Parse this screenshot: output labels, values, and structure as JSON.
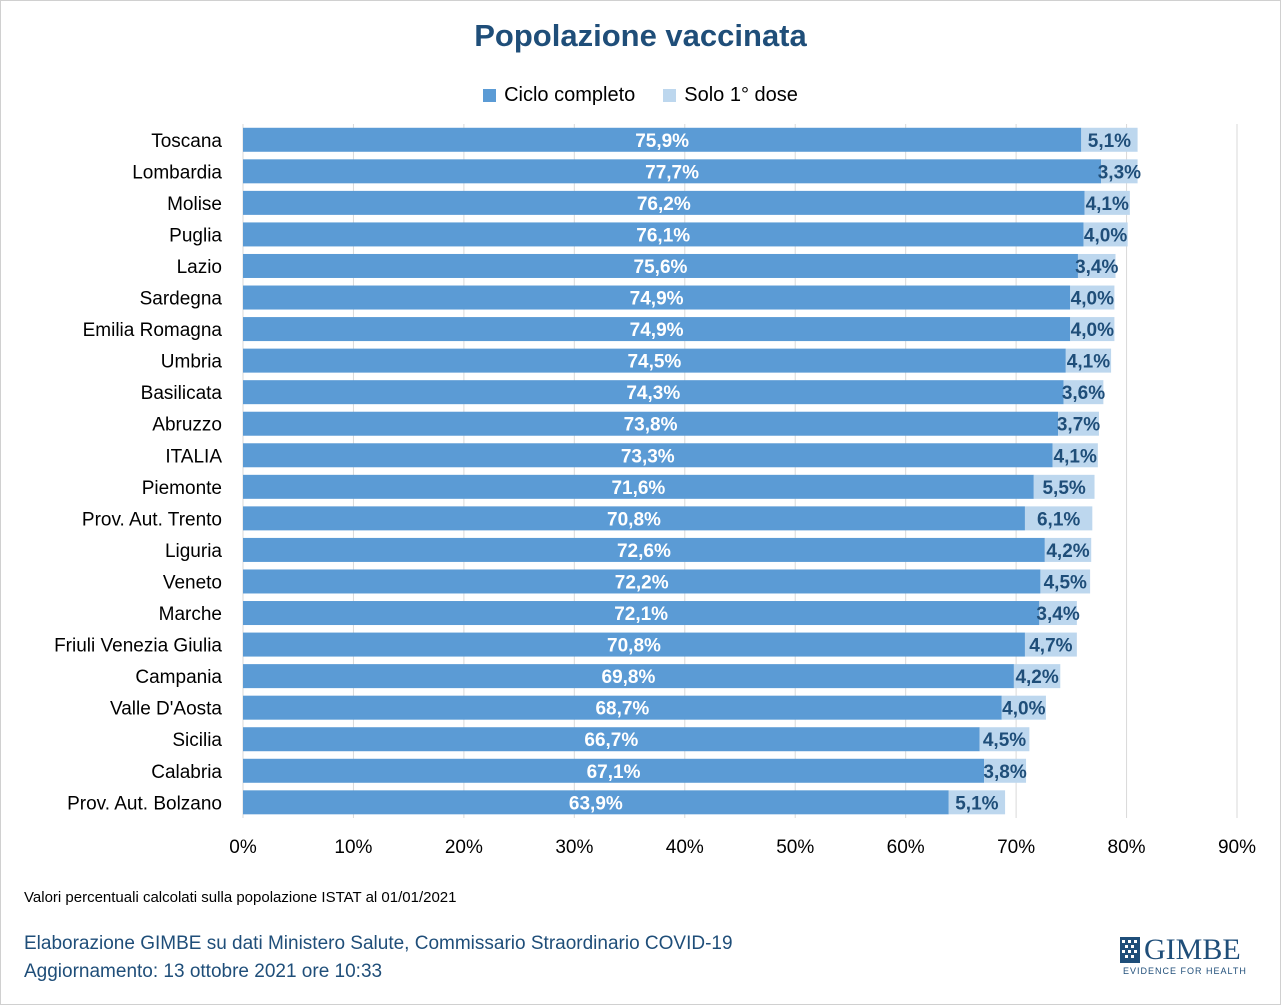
{
  "chart_data": {
    "type": "bar",
    "orientation": "horizontal",
    "stacked": true,
    "title": "Popolazione vaccinata",
    "categories": [
      "Toscana",
      "Lombardia",
      "Molise",
      "Puglia",
      "Lazio",
      "Sardegna",
      "Emilia Romagna",
      "Umbria",
      "Basilicata",
      "Abruzzo",
      "ITALIA",
      "Piemonte",
      "Prov. Aut. Trento",
      "Liguria",
      "Veneto",
      "Marche",
      "Friuli Venezia Giulia",
      "Campania",
      "Valle D'Aosta",
      "Sicilia",
      "Calabria",
      "Prov. Aut. Bolzano"
    ],
    "series": [
      {
        "name": "Ciclo completo",
        "color": "#5b9bd5",
        "values": [
          75.9,
          77.7,
          76.2,
          76.1,
          75.6,
          74.9,
          74.9,
          74.5,
          74.3,
          73.8,
          73.3,
          71.6,
          70.8,
          72.6,
          72.2,
          72.1,
          70.8,
          69.8,
          68.7,
          66.7,
          67.1,
          63.9
        ],
        "labels": [
          "75,9%",
          "77,7%",
          "76,2%",
          "76,1%",
          "75,6%",
          "74,9%",
          "74,9%",
          "74,5%",
          "74,3%",
          "73,8%",
          "73,3%",
          "71,6%",
          "70,8%",
          "72,6%",
          "72,2%",
          "72,1%",
          "70,8%",
          "69,8%",
          "68,7%",
          "66,7%",
          "67,1%",
          "63,9%"
        ]
      },
      {
        "name": "Solo 1° dose",
        "color": "#bdd7ee",
        "values": [
          5.1,
          3.3,
          4.1,
          4.0,
          3.4,
          4.0,
          4.0,
          4.1,
          3.6,
          3.7,
          4.1,
          5.5,
          6.1,
          4.2,
          4.5,
          3.4,
          4.7,
          4.2,
          4.0,
          4.5,
          3.8,
          5.1
        ],
        "labels": [
          "5,1%",
          "3,3%",
          "4,1%",
          "4,0%",
          "3,4%",
          "4,0%",
          "4,0%",
          "4,1%",
          "3,6%",
          "3,7%",
          "4,1%",
          "5,5%",
          "6,1%",
          "4,2%",
          "4,5%",
          "3,4%",
          "4,7%",
          "4,2%",
          "4,0%",
          "4,5%",
          "3,8%",
          "5,1%"
        ]
      }
    ],
    "xlim": [
      0,
      90
    ],
    "xticks": [
      "0%",
      "10%",
      "20%",
      "30%",
      "40%",
      "50%",
      "60%",
      "70%",
      "80%",
      "90%"
    ],
    "grid": true,
    "legend_position": "top"
  },
  "footer": {
    "note": "Valori percentuali calcolati sulla popolazione ISTAT al 01/01/2021",
    "credit": "Elaborazione GIMBE su dati Ministero Salute, Commissario Straordinario COVID-19",
    "updated": "Aggiornamento: 13 ottobre 2021 ore 10:33"
  },
  "logo": {
    "name": "GIMBE",
    "tagline": "EVIDENCE FOR HEALTH"
  }
}
